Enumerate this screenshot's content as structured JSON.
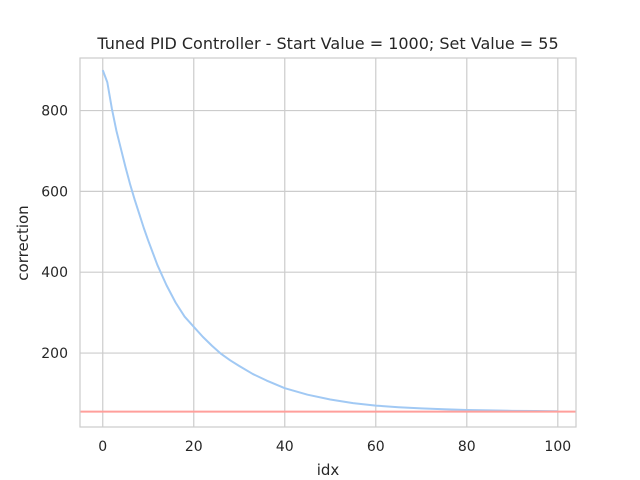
{
  "chart_data": {
    "type": "line",
    "title": "Tuned PID Controller - Start Value = 1000; Set Value = 55",
    "xlabel": "idx",
    "ylabel": "correction",
    "xlim": [
      -5,
      104
    ],
    "ylim": [
      17,
      930
    ],
    "x_ticks": [
      0,
      20,
      40,
      60,
      80,
      100
    ],
    "y_ticks": [
      200,
      400,
      600,
      800
    ],
    "grid": true,
    "series": [
      {
        "color": "#a1c9f4",
        "x": [
          0,
          1,
          2,
          3,
          4,
          5,
          6,
          7,
          8,
          9,
          10,
          12,
          14,
          16,
          18,
          20,
          22,
          24,
          26,
          28,
          30,
          33,
          36,
          40,
          45,
          50,
          55,
          60,
          65,
          70,
          75,
          80,
          85,
          90,
          95,
          100
        ],
        "values": [
          900,
          870,
          805,
          750,
          705,
          660,
          618,
          580,
          545,
          510,
          478,
          418,
          368,
          325,
          290,
          265,
          240,
          218,
          198,
          182,
          168,
          148,
          132,
          113,
          97,
          85,
          76,
          70,
          66,
          63,
          61,
          59,
          58,
          57,
          56.5,
          56
        ]
      },
      {
        "color": "#ff9f9b",
        "x": [
          -5,
          104
        ],
        "values": [
          55,
          55
        ]
      }
    ]
  }
}
